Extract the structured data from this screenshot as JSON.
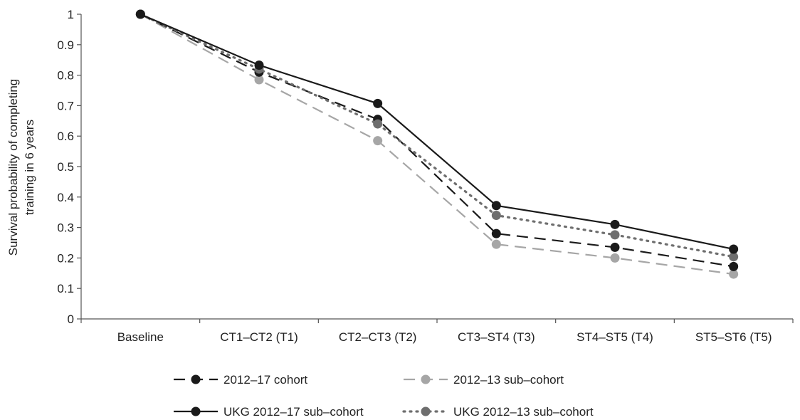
{
  "chart_data": {
    "type": "line",
    "title": "",
    "xlabel": "",
    "ylabel_lines": [
      "Survival probability of completing",
      "training in 6 years"
    ],
    "categories": [
      "Baseline",
      "CT1–CT2 (T1)",
      "CT2–CT3 (T2)",
      "CT3–ST4 (T3)",
      "ST4–ST5 (T4)",
      "ST5–ST6 (T5)"
    ],
    "ylim": [
      0,
      1
    ],
    "yticks": [
      "0",
      "0.1",
      "0.2",
      "0.3",
      "0.4",
      "0.5",
      "0.6",
      "0.7",
      "0.8",
      "0.9",
      "1"
    ],
    "grid": false,
    "legend_position": "bottom",
    "series": [
      {
        "name": "2012–17 cohort",
        "values": [
          1.0,
          0.81,
          0.655,
          0.28,
          0.235,
          0.172
        ],
        "color": "#1a1a1a",
        "marker_color": "#1a1a1a",
        "dash": "dashed"
      },
      {
        "name": "2012–13 sub–cohort",
        "values": [
          1.0,
          0.785,
          0.585,
          0.245,
          0.2,
          0.147
        ],
        "color": "#a6a6a6",
        "marker_color": "#a6a6a6",
        "dash": "dashed"
      },
      {
        "name": "UKG 2012–17 sub–cohort",
        "values": [
          1.0,
          0.833,
          0.707,
          0.372,
          0.31,
          0.229
        ],
        "color": "#1a1a1a",
        "marker_color": "#1a1a1a",
        "dash": "solid"
      },
      {
        "name": "UKG 2012–13 sub–cohort",
        "values": [
          1.0,
          0.82,
          0.64,
          0.34,
          0.276,
          0.204
        ],
        "color": "#6e6e6e",
        "marker_color": "#6e6e6e",
        "dash": "dotted"
      }
    ]
  }
}
